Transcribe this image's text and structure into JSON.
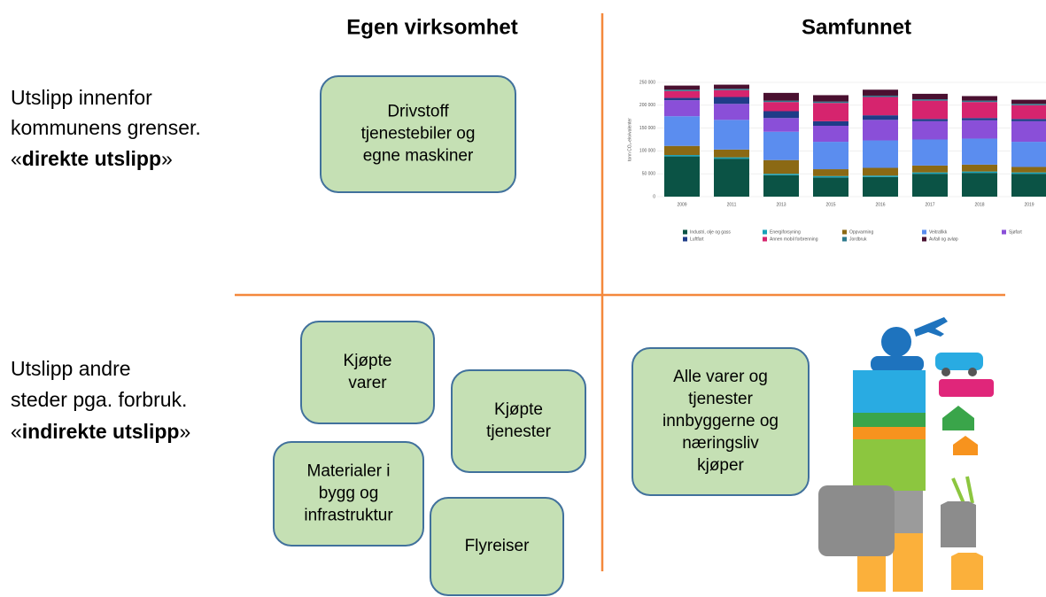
{
  "headers": [
    "Egen virksomhet",
    "Samfunnet"
  ],
  "rows": [
    {
      "lines": [
        "Utslipp innenfor",
        "kommunens grenser."
      ],
      "tag": {
        "open": "«",
        "bold": "direkte utslipp",
        "close": "»"
      }
    },
    {
      "lines": [
        "Utslipp andre",
        "steder pga. forbruk."
      ],
      "tag": {
        "open": "«",
        "bold": "indirekte utslipp",
        "close": "»"
      }
    }
  ],
  "boxes": [
    {
      "lines": [
        "Drivstoff",
        "tjenestebiler og",
        "egne maskiner"
      ]
    },
    {
      "lines": [
        "Kjøpte",
        "varer"
      ]
    },
    {
      "lines": [
        "Kjøpte",
        "tjenester"
      ]
    },
    {
      "lines": [
        "Materialer i",
        "bygg og",
        "infrastruktur"
      ]
    },
    {
      "lines": [
        "Flyreiser"
      ]
    },
    {
      "lines": [
        "Alle varer og",
        "tjenester",
        "innbyggerne og",
        "næringsliv",
        "kjøper"
      ]
    }
  ],
  "chart_data": {
    "type": "stacked-bar",
    "y_label": "tonn CO₂-ekvivalenter",
    "categories": [
      "2009",
      "2011",
      "2013",
      "2015",
      "2016",
      "2017",
      "2018",
      "2019"
    ],
    "ylim": [
      0,
      250000
    ],
    "yticks": [
      0,
      {
        "value": 50000,
        "label": "50 000"
      },
      {
        "value": 100000,
        "label": "100 000"
      },
      {
        "value": 150000,
        "label": "150 000"
      },
      {
        "value": 200000,
        "label": "200 000"
      },
      {
        "value": 250000,
        "label": "250 000"
      }
    ],
    "series": [
      {
        "name": "Industri, olje og gass",
        "color": "#0b5345",
        "values": [
          88000,
          83000,
          47000,
          42000,
          43000,
          50000,
          52000,
          50000
        ]
      },
      {
        "name": "Energiforsyning",
        "color": "#17a2b8",
        "values": [
          3000,
          3000,
          3000,
          3000,
          3000,
          3000,
          3000,
          3000
        ]
      },
      {
        "name": "Oppvarming",
        "color": "#8b6914",
        "values": [
          20000,
          17000,
          30000,
          15000,
          17000,
          15000,
          15000,
          12000
        ]
      },
      {
        "name": "Veitrafikk",
        "color": "#5b8def",
        "values": [
          65000,
          65000,
          62000,
          60000,
          60000,
          57000,
          57000,
          55000
        ]
      },
      {
        "name": "Sjøfart",
        "color": "#8a4fd8",
        "values": [
          35000,
          35000,
          30000,
          35000,
          45000,
          40000,
          40000,
          45000
        ]
      },
      {
        "name": "Luftfart",
        "color": "#1f3c88",
        "values": [
          5000,
          15000,
          15000,
          10000,
          10000,
          5000,
          5000,
          5000
        ]
      },
      {
        "name": "Annen mobil forbrenning",
        "color": "#d6246e",
        "values": [
          15000,
          15000,
          20000,
          40000,
          40000,
          40000,
          35000,
          30000
        ]
      },
      {
        "name": "Jordbruk",
        "color": "#2c7a8c",
        "values": [
          3000,
          3000,
          3000,
          3000,
          3000,
          3000,
          3000,
          3000
        ]
      },
      {
        "name": "Avfall og avløp",
        "color": "#4a1030",
        "values": [
          9000,
          9000,
          17000,
          14000,
          13000,
          12000,
          10000,
          9000
        ]
      }
    ]
  }
}
